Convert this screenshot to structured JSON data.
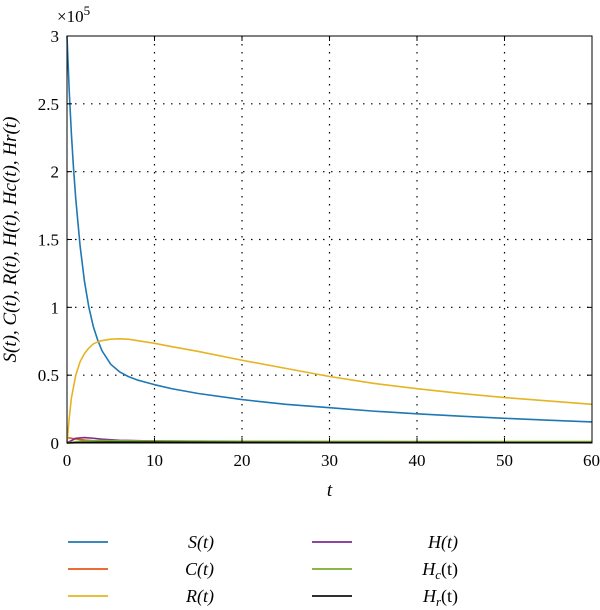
{
  "chart_data": {
    "type": "line",
    "xlabel": "t",
    "ylabel": "S(t), C(t), R(t), H(t), Hc(t), Hr(t)",
    "y_multiplier_label": "×10",
    "y_multiplier_exponent": "5",
    "xlim": [
      0,
      60
    ],
    "ylim": [
      0,
      3
    ],
    "xticks": [
      0,
      10,
      20,
      30,
      40,
      50,
      60
    ],
    "yticks": [
      0,
      0.5,
      1,
      1.5,
      2,
      2.5,
      3
    ],
    "ytick_labels": [
      "0",
      "0.5",
      "1",
      "1.5",
      "2",
      "2.5",
      "3"
    ],
    "grid": true,
    "legend_position": "bottom",
    "series": [
      {
        "name": "S(t)",
        "label_main": "S",
        "label_sub": "",
        "color": "#1f77b4",
        "x": [
          0,
          0.25,
          0.5,
          0.75,
          1,
          1.5,
          2,
          2.5,
          3,
          3.5,
          4,
          5,
          6,
          7,
          8,
          10,
          12,
          15,
          20,
          25,
          30,
          35,
          40,
          45,
          50,
          55,
          60
        ],
        "values": [
          3.0,
          2.6,
          2.28,
          2.02,
          1.8,
          1.45,
          1.19,
          1.0,
          0.86,
          0.76,
          0.68,
          0.58,
          0.525,
          0.49,
          0.465,
          0.43,
          0.4,
          0.365,
          0.32,
          0.285,
          0.26,
          0.235,
          0.215,
          0.198,
          0.182,
          0.168,
          0.155
        ]
      },
      {
        "name": "C(t)",
        "label_main": "C",
        "label_sub": "",
        "color": "#e8541e",
        "x": [
          0,
          0.5,
          1,
          2,
          3,
          5,
          10,
          20,
          30,
          40,
          50,
          60
        ],
        "values": [
          0.04,
          0.035,
          0.03,
          0.022,
          0.017,
          0.01,
          0.006,
          0.004,
          0.003,
          0.0025,
          0.002,
          0.002
        ]
      },
      {
        "name": "R(t)",
        "label_main": "R",
        "label_sub": "",
        "color": "#e6b422",
        "x": [
          0,
          0.25,
          0.5,
          1,
          1.5,
          2,
          2.5,
          3,
          3.5,
          4,
          5,
          6,
          7,
          8,
          10,
          12,
          15,
          20,
          25,
          30,
          35,
          40,
          45,
          50,
          55,
          60
        ],
        "values": [
          0.0,
          0.18,
          0.33,
          0.5,
          0.6,
          0.66,
          0.7,
          0.73,
          0.745,
          0.755,
          0.765,
          0.768,
          0.765,
          0.755,
          0.735,
          0.71,
          0.675,
          0.61,
          0.55,
          0.49,
          0.44,
          0.4,
          0.365,
          0.335,
          0.31,
          0.285
        ]
      },
      {
        "name": "H(t)",
        "label_main": "H",
        "label_sub": "",
        "color": "#7b2d8e",
        "x": [
          0,
          1,
          2,
          3,
          4,
          6,
          10,
          20,
          30,
          40,
          50,
          60
        ],
        "values": [
          0.0,
          0.035,
          0.04,
          0.035,
          0.028,
          0.02,
          0.014,
          0.01,
          0.008,
          0.007,
          0.006,
          0.006
        ]
      },
      {
        "name": "Hc(t)",
        "label_main": "H",
        "label_sub": "c",
        "color": "#77ac30",
        "x": [
          0,
          1,
          2,
          4,
          6,
          10,
          20,
          30,
          40,
          50,
          60
        ],
        "values": [
          0.0,
          0.01,
          0.015,
          0.018,
          0.017,
          0.015,
          0.013,
          0.012,
          0.011,
          0.011,
          0.011
        ]
      },
      {
        "name": "Hr(t)",
        "label_main": "H",
        "label_sub": "r",
        "color": "#111111",
        "x": [
          0,
          2,
          5,
          10,
          20,
          30,
          40,
          50,
          60
        ],
        "values": [
          0.0,
          0.004,
          0.006,
          0.006,
          0.004,
          0.003,
          0.003,
          0.002,
          0.002
        ]
      }
    ]
  }
}
